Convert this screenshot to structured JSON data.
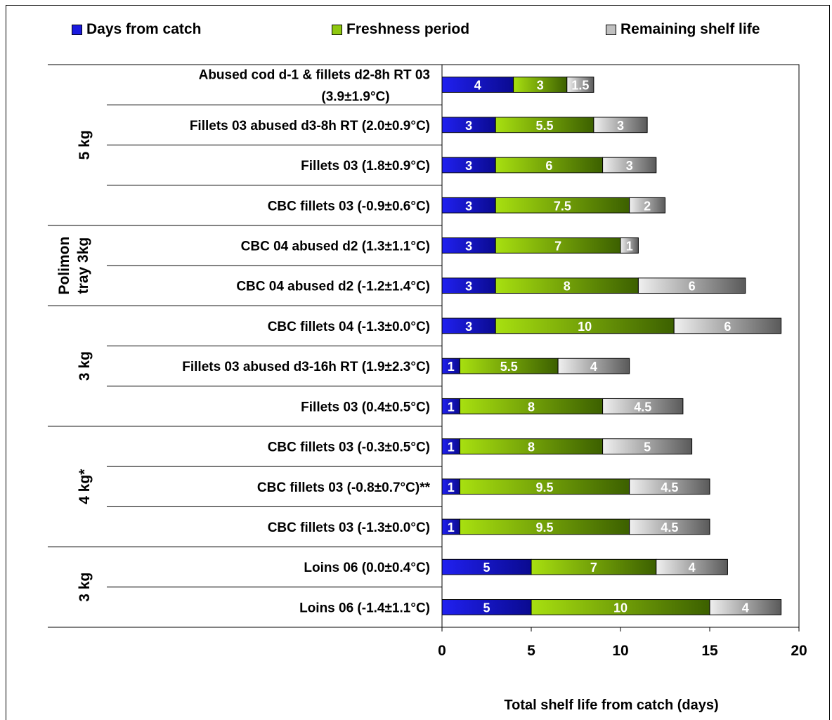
{
  "chart_data": {
    "type": "bar",
    "stacked": true,
    "orientation": "horizontal",
    "xlabel": "Total shelf life from catch (days)",
    "xlim": [
      0,
      20
    ],
    "xticks": [
      "0",
      "5",
      "10",
      "15",
      "20"
    ],
    "legend_position": "top",
    "series": [
      {
        "name": "Days from catch",
        "color": "#1a1adf",
        "values": [
          4,
          3,
          3,
          3,
          3,
          3,
          3,
          1,
          1,
          1,
          1,
          1,
          5,
          5
        ],
        "labels": [
          "4",
          "3",
          "3",
          "3",
          "3",
          "3",
          "3",
          "1",
          "1",
          "1",
          "1",
          "1",
          "5",
          "5"
        ]
      },
      {
        "name": "Freshness period",
        "color": "#8fc80f",
        "values": [
          3,
          5.5,
          6,
          7.5,
          7,
          8,
          10,
          5.5,
          8,
          8,
          9.5,
          9.5,
          7,
          10
        ],
        "labels": [
          "3",
          "5.5",
          "6",
          "7.5",
          "7",
          "8",
          "10",
          "5.5",
          "8",
          "8",
          "9.5",
          "9.5",
          "7",
          "10"
        ]
      },
      {
        "name": "Remaining shelf life",
        "color": "#c0c0c0",
        "values": [
          1.5,
          3,
          3,
          2,
          1,
          6,
          6,
          4,
          4.5,
          5,
          4.5,
          4.5,
          4,
          4
        ],
        "labels": [
          "1.5",
          "3",
          "3",
          "2",
          "1",
          "6",
          "6",
          "4",
          "4.5",
          "5",
          "4.5",
          "4.5",
          "4",
          "4"
        ]
      }
    ],
    "categories": [
      [
        "Abused cod d-1 & fillets d2-8h RT 03",
        "(3.9±1.9°C)"
      ],
      [
        "Fillets 03 abused d3-8h RT (2.0±0.9°C)"
      ],
      [
        "Fillets 03 (1.8±0.9°C)"
      ],
      [
        "CBC fillets 03 (-0.9±0.6°C)"
      ],
      [
        "CBC 04 abused d2 (1.3±1.1°C)"
      ],
      [
        "CBC 04 abused d2 (-1.2±1.4°C)"
      ],
      [
        "CBC fillets 04 (-1.3±0.0°C)"
      ],
      [
        "Fillets 03 abused d3-16h RT (1.9±2.3°C)"
      ],
      [
        "Fillets 03 (0.4±0.5°C)"
      ],
      [
        "CBC fillets 03 (-0.3±0.5°C)"
      ],
      [
        "CBC fillets 03 (-0.8±0.7°C)**"
      ],
      [
        "CBC fillets 03 (-1.3±0.0°C)"
      ],
      [
        "Loins 06 (0.0±0.4°C)"
      ],
      [
        "Loins 06 (-1.4±1.1°C)"
      ]
    ],
    "groups": [
      {
        "label": [
          "5 kg"
        ],
        "rows": [
          0,
          3
        ]
      },
      {
        "label": [
          "Polimon",
          "tray 3kg"
        ],
        "rows": [
          4,
          5
        ]
      },
      {
        "label": [
          "3 kg"
        ],
        "rows": [
          6,
          8
        ]
      },
      {
        "label": [
          "4 kg*"
        ],
        "rows": [
          9,
          11
        ]
      },
      {
        "label": [
          "3 kg"
        ],
        "rows": [
          12,
          13
        ]
      }
    ]
  }
}
